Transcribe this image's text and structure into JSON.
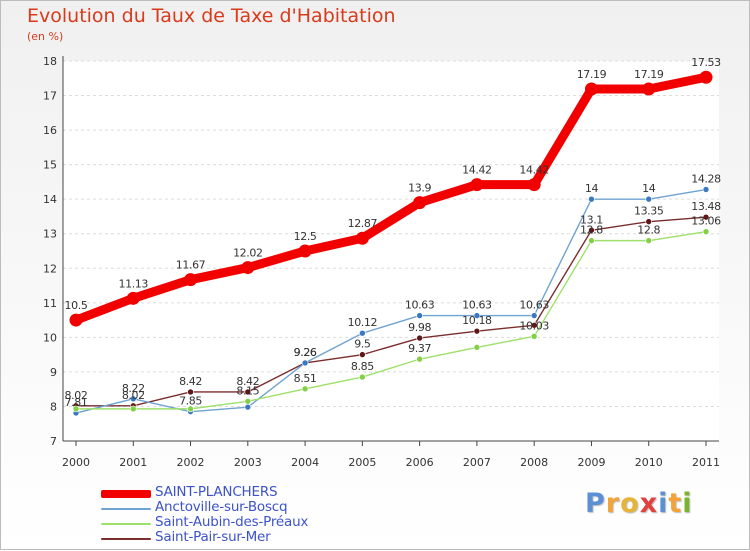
{
  "header": {
    "title": "Evolution du Taux de Taxe d'Habitation",
    "unit": "(en %)"
  },
  "logo": {
    "letters": [
      "P",
      "r",
      "o",
      "x",
      "i",
      "t",
      "i"
    ],
    "colors": [
      "#5b8fd6",
      "#f2a43a",
      "#e7b43a",
      "#e04040",
      "#5b8fd6",
      "#f2a43a",
      "#7bb32e"
    ]
  },
  "chart_data": {
    "type": "line",
    "title": "Evolution du Taux de Taxe d'Habitation",
    "ylabel": "(en %)",
    "xlabel": "",
    "x": [
      "2000",
      "2001",
      "2002",
      "2003",
      "2004",
      "2005",
      "2006",
      "2007",
      "2008",
      "2009",
      "2010",
      "2011"
    ],
    "ylim": [
      7,
      18
    ],
    "yticks": [
      "7",
      "8",
      "9",
      "10",
      "11",
      "12",
      "13",
      "14",
      "15",
      "16",
      "17",
      "18"
    ],
    "grid": true,
    "legend_position": "bottom-left",
    "series": [
      {
        "name": "SAINT-PLANCHERS",
        "color": "#f20000",
        "marker": "#f20000",
        "width": "thick",
        "values": [
          10.5,
          11.13,
          11.67,
          12.02,
          12.5,
          12.87,
          13.9,
          14.42,
          14.42,
          17.19,
          17.19,
          17.53
        ],
        "labels": [
          "10.5",
          "11.13",
          "11.67",
          "12.02",
          "12.5",
          "12.87",
          "13.9",
          "14.42",
          "14.42",
          "17.19",
          "17.19",
          "17.53"
        ]
      },
      {
        "name": "Anctoville-sur-Boscq",
        "color": "#6fa3d1",
        "marker": "#3a78c2",
        "width": "thin",
        "values": [
          7.81,
          8.22,
          7.85,
          7.98,
          9.26,
          10.12,
          10.63,
          10.63,
          10.63,
          14,
          14,
          14.28
        ],
        "labels": [
          "7.81",
          "8.22",
          "7.85",
          "",
          "9.26",
          "10.12",
          "10.63",
          "10.63",
          "10.63",
          "14",
          "14",
          "14.28"
        ]
      },
      {
        "name": "Saint-Aubin-des-Préaux",
        "color": "#9ee06a",
        "marker": "#82d048",
        "width": "thin",
        "values": [
          7.93,
          7.93,
          7.93,
          8.15,
          8.51,
          8.85,
          9.37,
          9.71,
          10.03,
          12.8,
          12.8,
          13.06
        ],
        "labels": [
          "",
          "",
          "",
          "8.15",
          "8.51",
          "8.85",
          "9.37",
          "",
          "10.03",
          "12.8",
          "12.8",
          "13.06"
        ]
      },
      {
        "name": "Saint-Pair-sur-Mer",
        "color": "#7a2e2e",
        "marker": "#5e1616",
        "width": "thin",
        "values": [
          8.02,
          8.02,
          8.42,
          8.42,
          9.26,
          9.5,
          9.98,
          10.18,
          10.35,
          13.1,
          13.35,
          13.48
        ],
        "labels": [
          "8.02",
          "8.02",
          "8.42",
          "8.42",
          "9.26",
          "9.5",
          "9.98",
          "10.18",
          "",
          "13.1",
          "13.35",
          "13.48"
        ]
      }
    ]
  }
}
